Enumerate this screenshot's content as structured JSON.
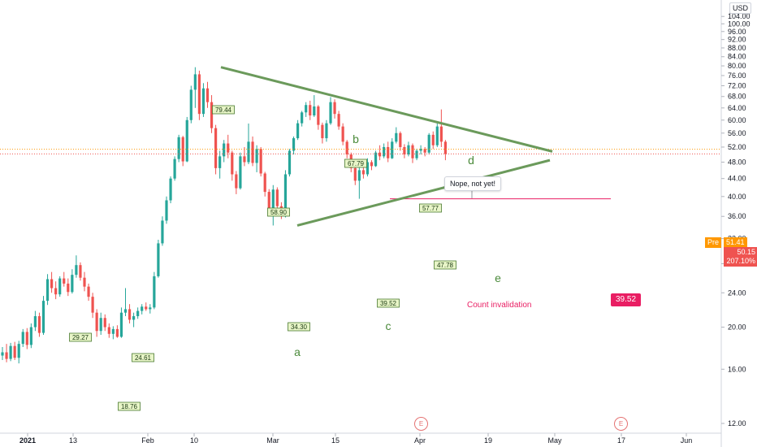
{
  "currency": "USD",
  "current": {
    "pre_label": "Pre",
    "pre_value": "51.41",
    "last_price": "50.15",
    "change_pct": "207.10%"
  },
  "callout": "Nope, not yet!",
  "invalidation": {
    "label": "Count invalidation",
    "value": "39.52"
  },
  "earnings_badges": [
    "E",
    "E"
  ],
  "chart_data": {
    "type": "candlestick",
    "title": "",
    "y_axis": {
      "scale": "log",
      "ticks": [
        "12.00",
        "16.00",
        "20.00",
        "24.00",
        "28.00",
        "32.00",
        "36.00",
        "40.00",
        "44.00",
        "48.00",
        "52.00",
        "56.00",
        "60.00",
        "64.00",
        "68.00",
        "72.00",
        "76.00",
        "80.00",
        "84.00",
        "88.00",
        "92.00",
        "96.00",
        "100.00",
        "104.00"
      ]
    },
    "x_axis": {
      "ticks": [
        "2021",
        "13",
        "Feb",
        "10",
        "Mar",
        "15",
        "Apr",
        "19",
        "May",
        "17",
        "Jun"
      ]
    },
    "wave_labels": [
      "a",
      "b",
      "c",
      "d",
      "e"
    ],
    "price_labels": [
      "29.27",
      "18.76",
      "24.61",
      "79.44",
      "58.90",
      "34.30",
      "67.79",
      "39.52",
      "57.77",
      "47.78"
    ],
    "trendlines": [
      {
        "name": "upper",
        "from": [
          "Feb 12",
          79.44
        ],
        "to": [
          "Apr 29",
          50.8
        ]
      },
      {
        "name": "lower",
        "from": [
          "Mar 8",
          34.3
        ],
        "to": [
          "Apr 29",
          48.5
        ]
      }
    ],
    "invalidation_level": 39.52,
    "pre_market_price": 51.41,
    "last_price": 50.15,
    "candles": [
      {
        "o": 17.2,
        "h": 18.0,
        "l": 16.8,
        "c": 17.5
      },
      {
        "o": 17.5,
        "h": 18.3,
        "l": 16.6,
        "c": 16.9
      },
      {
        "o": 16.9,
        "h": 18.4,
        "l": 16.7,
        "c": 18.1
      },
      {
        "o": 18.1,
        "h": 18.5,
        "l": 16.8,
        "c": 17.0
      },
      {
        "o": 17.0,
        "h": 18.6,
        "l": 16.5,
        "c": 18.3
      },
      {
        "o": 18.3,
        "h": 19.8,
        "l": 18.0,
        "c": 19.5
      },
      {
        "o": 19.5,
        "h": 19.9,
        "l": 17.8,
        "c": 18.2
      },
      {
        "o": 18.2,
        "h": 20.4,
        "l": 17.9,
        "c": 20.0
      },
      {
        "o": 20.0,
        "h": 21.8,
        "l": 19.6,
        "c": 21.2
      },
      {
        "o": 21.2,
        "h": 21.6,
        "l": 19.0,
        "c": 19.4
      },
      {
        "o": 19.4,
        "h": 23.6,
        "l": 19.2,
        "c": 23.0
      },
      {
        "o": 23.0,
        "h": 26.5,
        "l": 22.5,
        "c": 25.8
      },
      {
        "o": 25.8,
        "h": 26.8,
        "l": 24.0,
        "c": 24.6
      },
      {
        "o": 24.6,
        "h": 25.5,
        "l": 23.2,
        "c": 23.8
      },
      {
        "o": 23.8,
        "h": 26.2,
        "l": 23.5,
        "c": 25.9
      },
      {
        "o": 25.9,
        "h": 26.8,
        "l": 24.8,
        "c": 25.2
      },
      {
        "o": 25.2,
        "h": 25.9,
        "l": 23.6,
        "c": 24.1
      },
      {
        "o": 24.1,
        "h": 27.2,
        "l": 23.9,
        "c": 26.4
      },
      {
        "o": 26.4,
        "h": 29.27,
        "l": 26.0,
        "c": 27.8
      },
      {
        "o": 27.8,
        "h": 28.2,
        "l": 25.6,
        "c": 26.0
      },
      {
        "o": 26.0,
        "h": 26.8,
        "l": 24.2,
        "c": 24.8
      },
      {
        "o": 24.8,
        "h": 25.2,
        "l": 23.0,
        "c": 23.5
      },
      {
        "o": 23.5,
        "h": 24.0,
        "l": 21.0,
        "c": 21.6
      },
      {
        "o": 21.6,
        "h": 22.0,
        "l": 19.0,
        "c": 19.6
      },
      {
        "o": 19.6,
        "h": 21.6,
        "l": 19.2,
        "c": 21.0
      },
      {
        "o": 21.0,
        "h": 21.4,
        "l": 19.6,
        "c": 20.0
      },
      {
        "o": 20.0,
        "h": 20.4,
        "l": 18.9,
        "c": 19.3
      },
      {
        "o": 19.3,
        "h": 20.1,
        "l": 18.76,
        "c": 19.8
      },
      {
        "o": 19.8,
        "h": 20.2,
        "l": 18.9,
        "c": 19.0
      },
      {
        "o": 19.0,
        "h": 22.2,
        "l": 18.9,
        "c": 21.6
      },
      {
        "o": 21.6,
        "h": 24.61,
        "l": 21.2,
        "c": 22.0
      },
      {
        "o": 22.0,
        "h": 22.6,
        "l": 20.4,
        "c": 20.8
      },
      {
        "o": 20.8,
        "h": 21.6,
        "l": 20.0,
        "c": 21.2
      },
      {
        "o": 21.2,
        "h": 22.2,
        "l": 20.9,
        "c": 21.8
      },
      {
        "o": 21.8,
        "h": 22.6,
        "l": 21.4,
        "c": 22.3
      },
      {
        "o": 22.3,
        "h": 22.8,
        "l": 21.8,
        "c": 22.0
      },
      {
        "o": 22.0,
        "h": 22.6,
        "l": 21.5,
        "c": 22.2
      },
      {
        "o": 22.2,
        "h": 26.8,
        "l": 22.0,
        "c": 26.2
      },
      {
        "o": 26.2,
        "h": 31.8,
        "l": 26.0,
        "c": 31.2
      },
      {
        "o": 31.2,
        "h": 36.0,
        "l": 30.8,
        "c": 35.2
      },
      {
        "o": 35.2,
        "h": 40.0,
        "l": 34.6,
        "c": 39.2
      },
      {
        "o": 39.2,
        "h": 44.5,
        "l": 38.6,
        "c": 44.0
      },
      {
        "o": 44.0,
        "h": 49.5,
        "l": 43.5,
        "c": 48.8
      },
      {
        "o": 48.8,
        "h": 55.5,
        "l": 48.0,
        "c": 54.8
      },
      {
        "o": 54.8,
        "h": 55.2,
        "l": 47.0,
        "c": 48.2
      },
      {
        "o": 48.2,
        "h": 61.0,
        "l": 48.0,
        "c": 60.0
      },
      {
        "o": 60.0,
        "h": 72.0,
        "l": 59.0,
        "c": 70.5
      },
      {
        "o": 70.5,
        "h": 79.44,
        "l": 64.0,
        "c": 76.5
      },
      {
        "o": 76.5,
        "h": 78.0,
        "l": 60.0,
        "c": 62.0
      },
      {
        "o": 62.0,
        "h": 73.0,
        "l": 61.0,
        "c": 71.0
      },
      {
        "o": 71.0,
        "h": 73.5,
        "l": 64.0,
        "c": 66.0
      },
      {
        "o": 66.0,
        "h": 68.5,
        "l": 56.0,
        "c": 57.5
      },
      {
        "o": 57.5,
        "h": 58.5,
        "l": 45.0,
        "c": 46.5
      },
      {
        "o": 46.5,
        "h": 51.0,
        "l": 44.0,
        "c": 49.5
      },
      {
        "o": 49.5,
        "h": 54.0,
        "l": 48.0,
        "c": 53.0
      },
      {
        "o": 53.0,
        "h": 55.5,
        "l": 49.0,
        "c": 50.5
      },
      {
        "o": 50.5,
        "h": 51.0,
        "l": 43.5,
        "c": 45.0
      },
      {
        "o": 45.0,
        "h": 45.8,
        "l": 40.5,
        "c": 41.8
      },
      {
        "o": 41.8,
        "h": 50.5,
        "l": 41.5,
        "c": 49.5
      },
      {
        "o": 49.5,
        "h": 52.0,
        "l": 47.0,
        "c": 48.0
      },
      {
        "o": 48.0,
        "h": 58.9,
        "l": 47.5,
        "c": 53.5
      },
      {
        "o": 53.5,
        "h": 55.0,
        "l": 47.0,
        "c": 47.8
      },
      {
        "o": 47.8,
        "h": 52.5,
        "l": 45.5,
        "c": 51.5
      },
      {
        "o": 51.5,
        "h": 52.0,
        "l": 44.5,
        "c": 45.2
      },
      {
        "o": 45.2,
        "h": 45.6,
        "l": 40.0,
        "c": 41.0
      },
      {
        "o": 41.0,
        "h": 41.6,
        "l": 36.5,
        "c": 37.5
      },
      {
        "o": 37.5,
        "h": 42.5,
        "l": 34.3,
        "c": 41.5
      },
      {
        "o": 41.5,
        "h": 42.0,
        "l": 37.0,
        "c": 38.0
      },
      {
        "o": 38.0,
        "h": 38.8,
        "l": 35.5,
        "c": 36.0
      },
      {
        "o": 36.0,
        "h": 46.0,
        "l": 35.8,
        "c": 45.0
      },
      {
        "o": 45.0,
        "h": 51.5,
        "l": 44.5,
        "c": 51.0
      },
      {
        "o": 51.0,
        "h": 55.0,
        "l": 50.0,
        "c": 54.5
      },
      {
        "o": 54.5,
        "h": 60.0,
        "l": 54.0,
        "c": 59.0
      },
      {
        "o": 59.0,
        "h": 63.0,
        "l": 58.0,
        "c": 62.5
      },
      {
        "o": 62.5,
        "h": 66.0,
        "l": 61.0,
        "c": 65.0
      },
      {
        "o": 65.0,
        "h": 66.5,
        "l": 60.0,
        "c": 61.5
      },
      {
        "o": 61.5,
        "h": 68.5,
        "l": 61.0,
        "c": 64.5
      },
      {
        "o": 64.5,
        "h": 65.0,
        "l": 57.0,
        "c": 58.5
      },
      {
        "o": 58.5,
        "h": 59.2,
        "l": 53.0,
        "c": 54.5
      },
      {
        "o": 54.5,
        "h": 60.0,
        "l": 53.5,
        "c": 59.0
      },
      {
        "o": 59.0,
        "h": 67.79,
        "l": 58.5,
        "c": 66.0
      },
      {
        "o": 66.0,
        "h": 67.0,
        "l": 60.5,
        "c": 62.0
      },
      {
        "o": 62.0,
        "h": 63.0,
        "l": 57.0,
        "c": 58.0
      },
      {
        "o": 58.0,
        "h": 59.0,
        "l": 52.5,
        "c": 53.5
      },
      {
        "o": 53.5,
        "h": 54.0,
        "l": 49.0,
        "c": 50.0
      },
      {
        "o": 50.0,
        "h": 50.5,
        "l": 45.5,
        "c": 46.5
      },
      {
        "o": 46.5,
        "h": 47.0,
        "l": 42.5,
        "c": 43.5
      },
      {
        "o": 43.5,
        "h": 47.0,
        "l": 39.52,
        "c": 46.0
      },
      {
        "o": 46.0,
        "h": 48.5,
        "l": 44.0,
        "c": 45.0
      },
      {
        "o": 45.0,
        "h": 49.0,
        "l": 44.5,
        "c": 48.0
      },
      {
        "o": 48.0,
        "h": 48.5,
        "l": 46.0,
        "c": 47.0
      },
      {
        "o": 47.0,
        "h": 51.0,
        "l": 46.8,
        "c": 50.5
      },
      {
        "o": 50.5,
        "h": 52.5,
        "l": 48.5,
        "c": 49.5
      },
      {
        "o": 49.5,
        "h": 53.0,
        "l": 49.0,
        "c": 52.0
      },
      {
        "o": 52.0,
        "h": 53.5,
        "l": 48.0,
        "c": 49.0
      },
      {
        "o": 49.0,
        "h": 54.5,
        "l": 48.8,
        "c": 53.5
      },
      {
        "o": 53.5,
        "h": 57.77,
        "l": 53.0,
        "c": 56.0
      },
      {
        "o": 56.0,
        "h": 56.5,
        "l": 51.0,
        "c": 52.0
      },
      {
        "o": 52.0,
        "h": 52.8,
        "l": 49.0,
        "c": 50.0
      },
      {
        "o": 50.0,
        "h": 53.5,
        "l": 49.5,
        "c": 52.5
      },
      {
        "o": 52.5,
        "h": 53.0,
        "l": 47.78,
        "c": 49.0
      },
      {
        "o": 49.0,
        "h": 51.5,
        "l": 48.5,
        "c": 51.0
      },
      {
        "o": 51.0,
        "h": 52.5,
        "l": 50.0,
        "c": 51.5
      },
      {
        "o": 51.5,
        "h": 52.0,
        "l": 49.5,
        "c": 50.5
      },
      {
        "o": 50.5,
        "h": 56.0,
        "l": 50.0,
        "c": 55.5
      },
      {
        "o": 55.5,
        "h": 56.5,
        "l": 51.5,
        "c": 52.5
      },
      {
        "o": 52.5,
        "h": 59.0,
        "l": 52.0,
        "c": 58.0
      },
      {
        "o": 58.0,
        "h": 63.5,
        "l": 52.0,
        "c": 53.5
      },
      {
        "o": 53.5,
        "h": 54.0,
        "l": 48.5,
        "c": 50.15
      }
    ],
    "colors": {
      "up": "#26a69a",
      "down": "#ef5350",
      "trendline": "#6b9a5b",
      "invalidation": "#e91e63",
      "pre": "#ff9800"
    }
  }
}
